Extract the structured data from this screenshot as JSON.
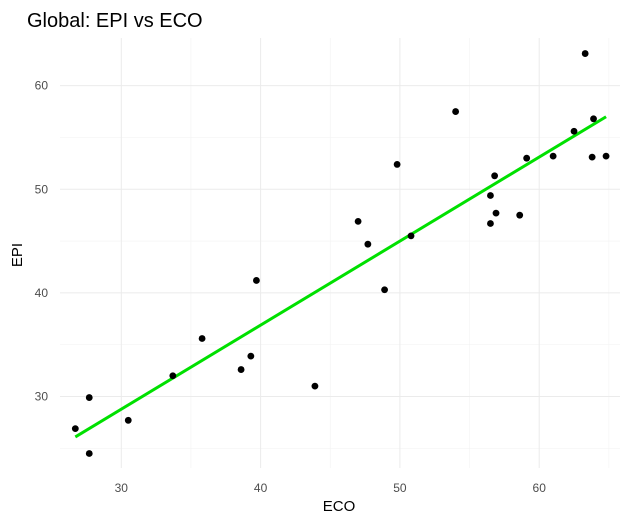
{
  "chart_data": {
    "type": "scatter",
    "title": "Global: EPI vs ECO",
    "xlabel": "ECO",
    "ylabel": "EPI",
    "xlim": [
      25.6,
      65.8
    ],
    "ylim": [
      23.1,
      64.6
    ],
    "xticks": [
      30,
      40,
      50,
      60
    ],
    "yticks": [
      30,
      40,
      50,
      60
    ],
    "xtick_labels": [
      "30",
      "40",
      "50",
      "60"
    ],
    "ytick_labels": [
      "30",
      "40",
      "50",
      "60"
    ],
    "grid": true,
    "legend": "none",
    "point_color": "#000000",
    "fit_color": "#00e000",
    "points": [
      {
        "x": 26.7,
        "y": 26.9
      },
      {
        "x": 27.7,
        "y": 24.5
      },
      {
        "x": 27.7,
        "y": 29.9
      },
      {
        "x": 30.5,
        "y": 27.7
      },
      {
        "x": 33.7,
        "y": 32.0
      },
      {
        "x": 35.8,
        "y": 35.6
      },
      {
        "x": 38.6,
        "y": 32.6
      },
      {
        "x": 39.3,
        "y": 33.9
      },
      {
        "x": 39.7,
        "y": 41.2
      },
      {
        "x": 43.9,
        "y": 31.0
      },
      {
        "x": 47.0,
        "y": 46.9
      },
      {
        "x": 47.7,
        "y": 44.7
      },
      {
        "x": 48.9,
        "y": 40.3
      },
      {
        "x": 49.8,
        "y": 52.4
      },
      {
        "x": 50.8,
        "y": 45.5
      },
      {
        "x": 54.0,
        "y": 57.5
      },
      {
        "x": 56.5,
        "y": 49.4
      },
      {
        "x": 56.5,
        "y": 46.7
      },
      {
        "x": 56.8,
        "y": 51.3
      },
      {
        "x": 56.9,
        "y": 47.7
      },
      {
        "x": 58.6,
        "y": 47.5
      },
      {
        "x": 59.1,
        "y": 53.0
      },
      {
        "x": 61.0,
        "y": 53.2
      },
      {
        "x": 62.5,
        "y": 55.6
      },
      {
        "x": 63.3,
        "y": 63.1
      },
      {
        "x": 63.8,
        "y": 53.1
      },
      {
        "x": 63.9,
        "y": 56.8
      },
      {
        "x": 64.8,
        "y": 53.2
      }
    ],
    "fit_line": {
      "x": [
        26.7,
        64.8
      ],
      "y": [
        26.1,
        57.0
      ]
    }
  }
}
